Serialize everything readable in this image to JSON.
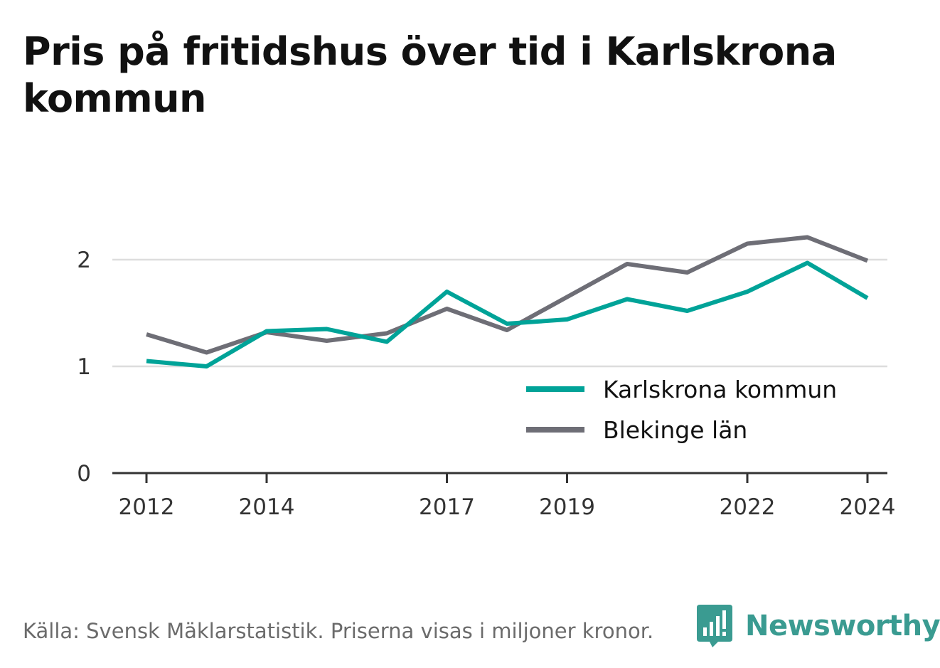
{
  "title": "Pris på fritidshus över tid i Karlskrona kommun",
  "footer": {
    "source": "Källa: Svensk Mäklarstatistik. Priserna visas i miljoner kronor.",
    "brand": "Newsworthy"
  },
  "colors": {
    "karlskrona": "#00a398",
    "blekinge": "#6e6e76",
    "grid": "#dddddd",
    "axis": "#333333",
    "text": "#333333",
    "brand": "#3a9b91"
  },
  "chart_data": {
    "type": "line",
    "x": [
      2012,
      2013,
      2014,
      2015,
      2016,
      2017,
      2018,
      2019,
      2020,
      2021,
      2022,
      2023,
      2024
    ],
    "x_ticks": [
      "2012",
      "2014",
      "2017",
      "2019",
      "2022",
      "2024"
    ],
    "y_ticks": [
      "0",
      "1",
      "2"
    ],
    "ylim": [
      0,
      2.5
    ],
    "grid": true,
    "legend_position": "bottom-right",
    "series": [
      {
        "name": "Karlskrona kommun",
        "values": [
          1.05,
          1.0,
          1.33,
          1.35,
          1.23,
          1.7,
          1.4,
          1.44,
          1.63,
          1.52,
          1.7,
          1.97,
          1.64
        ]
      },
      {
        "name": "Blekinge län",
        "values": [
          1.3,
          1.13,
          1.32,
          1.24,
          1.31,
          1.54,
          1.34,
          1.65,
          1.96,
          1.88,
          2.15,
          2.21,
          1.99
        ]
      }
    ]
  }
}
